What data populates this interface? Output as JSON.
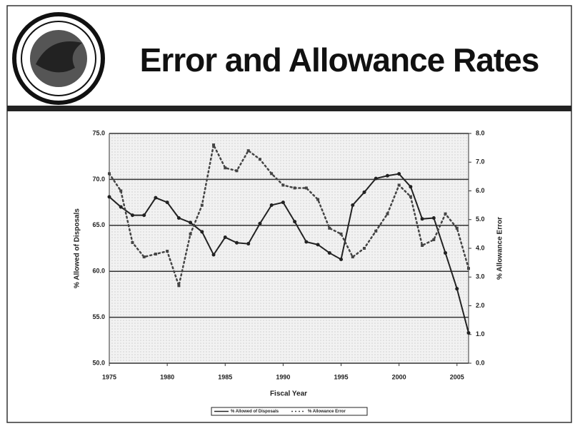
{
  "chart_data": {
    "type": "line",
    "title": "Error and Allowance Rates",
    "xlabel": "Fiscal Year",
    "ylabel": "% Allowed of Disposals",
    "y2label": "% Allowance Error",
    "x": [
      1975,
      1976,
      1977,
      1978,
      1979,
      1980,
      1981,
      1982,
      1983,
      1984,
      1985,
      1986,
      1987,
      1988,
      1989,
      1990,
      1991,
      1992,
      1993,
      1994,
      1995,
      1996,
      1997,
      1998,
      1999,
      2000,
      2001,
      2002,
      2003,
      2004,
      2005,
      2006
    ],
    "series": [
      {
        "name": "% Allowed of Disposals",
        "color": "#222222",
        "values": [
          68.1,
          67.0,
          66.1,
          66.1,
          68.0,
          67.5,
          65.8,
          65.3,
          64.3,
          61.8,
          63.7,
          63.1,
          63.0,
          65.2,
          67.2,
          67.5,
          65.4,
          63.2,
          62.9,
          62.0,
          61.3,
          67.2,
          68.6,
          70.1,
          70.4,
          70.6,
          69.2,
          65.7,
          65.8,
          62.0,
          58.1,
          53.3
        ]
      },
      {
        "name": "% Allowance Error",
        "color": "#444444",
        "axis": "y2",
        "values": [
          6.6,
          6.0,
          4.2,
          3.7,
          3.8,
          3.9,
          2.7,
          4.5,
          5.5,
          7.6,
          6.8,
          6.7,
          7.4,
          7.1,
          6.6,
          6.2,
          6.1,
          6.1,
          5.7,
          4.7,
          4.5,
          3.7,
          4.0,
          4.6,
          5.2,
          6.2,
          5.8,
          4.1,
          4.3,
          5.2,
          4.7,
          3.3
        ]
      }
    ],
    "xlim": [
      1975,
      2006
    ],
    "xticks": [
      1975,
      1980,
      1985,
      1990,
      1995,
      2000,
      2005
    ],
    "ylim": [
      50,
      75
    ],
    "yticks": [
      {
        "value": 50,
        "label": "50.0"
      },
      {
        "value": 55,
        "label": "55.0"
      },
      {
        "value": 60,
        "label": "60.0"
      },
      {
        "value": 65,
        "label": "65.0"
      },
      {
        "value": 70,
        "label": "70.0"
      },
      {
        "value": 75,
        "label": "75.0"
      }
    ],
    "y2lim": [
      0,
      8
    ],
    "y2ticks": [
      {
        "value": 0,
        "label": "0.0"
      },
      {
        "value": 1,
        "label": "1.0"
      },
      {
        "value": 2,
        "label": "2.0"
      },
      {
        "value": 3,
        "label": "3.0"
      },
      {
        "value": 4,
        "label": "4.0"
      },
      {
        "value": 5,
        "label": "5.0"
      },
      {
        "value": 6,
        "label": "6.0"
      },
      {
        "value": 7,
        "label": "7.0"
      },
      {
        "value": 8,
        "label": "8.0"
      }
    ],
    "grid": true
  }
}
